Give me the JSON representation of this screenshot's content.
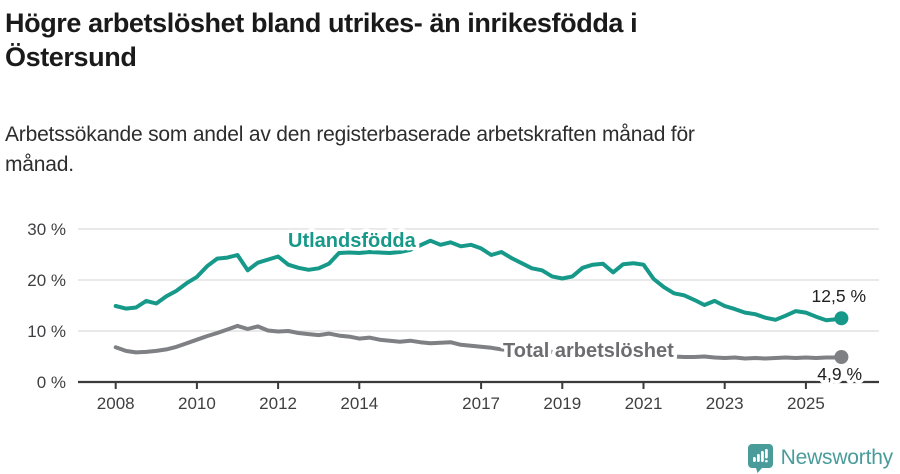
{
  "header": {
    "title": "Högre arbetslöshet bland utrikes- än inrikesfödda i Östersund",
    "title_lines": [
      "Högre arbetslöshet bland utrikes- än inrikesfödda i",
      "Östersund"
    ],
    "subtitle": "Arbetssökande som andel av den registerbaserade arbetskraften månad för månad.",
    "subtitle_lines": [
      "Arbetssökande som andel av den registerbaserade arbetskraften månad för",
      "månad."
    ]
  },
  "footer": {
    "logo_text": "Newsworthy",
    "logo_icon": "newsworthy-speech-bubble-chart-icon",
    "logo_color": "#4a9c9b"
  },
  "chart_data": {
    "type": "line",
    "title": "Högre arbetslöshet bland utrikes- än inrikesfödda i Östersund",
    "subtitle": "Arbetssökande som andel av den registerbaserade arbetskraften månad för månad.",
    "xlabel": "",
    "ylabel": "",
    "unit": "%",
    "grid": true,
    "legend_position": "inline",
    "ylim": [
      0,
      30
    ],
    "xlim": [
      2008,
      2026
    ],
    "x_ticks": [
      {
        "year": 2008,
        "label": "2008"
      },
      {
        "year": 2010,
        "label": "2010"
      },
      {
        "year": 2012,
        "label": "2012"
      },
      {
        "year": 2014,
        "label": "2014"
      },
      {
        "year": 2017,
        "label": "2017"
      },
      {
        "year": 2019,
        "label": "2019"
      },
      {
        "year": 2021,
        "label": "2021"
      },
      {
        "year": 2023,
        "label": "2023"
      },
      {
        "year": 2025,
        "label": "2025"
      }
    ],
    "y_ticks": [
      {
        "value": 0,
        "label": "0 %"
      },
      {
        "value": 10,
        "label": "10 %"
      },
      {
        "value": 20,
        "label": "20 %"
      },
      {
        "value": 30,
        "label": "30 %"
      }
    ],
    "x": [
      2008,
      2008.25,
      2008.5,
      2008.75,
      2009,
      2009.25,
      2009.5,
      2009.75,
      2010,
      2010.25,
      2010.5,
      2010.75,
      2011,
      2011.25,
      2011.5,
      2011.75,
      2012,
      2012.25,
      2012.5,
      2012.75,
      2013,
      2013.25,
      2013.5,
      2013.75,
      2014,
      2014.25,
      2014.5,
      2014.75,
      2015,
      2015.25,
      2015.5,
      2015.75,
      2016,
      2016.25,
      2016.5,
      2016.75,
      2017,
      2017.25,
      2017.5,
      2017.75,
      2018,
      2018.25,
      2018.5,
      2018.75,
      2019,
      2019.25,
      2019.5,
      2019.75,
      2020,
      2020.25,
      2020.5,
      2020.75,
      2021,
      2021.25,
      2021.5,
      2021.75,
      2022,
      2022.25,
      2022.5,
      2022.75,
      2023,
      2023.25,
      2023.5,
      2023.75,
      2024,
      2024.25,
      2024.5,
      2024.75,
      2025,
      2025.25,
      2025.5,
      2025.75,
      2025.875
    ],
    "series": [
      {
        "name": "Utlandsfödda",
        "color": "#17998a",
        "end_label": "12,5 %",
        "end_value": 12.5,
        "values": [
          14.9,
          14.4,
          14.6,
          15.9,
          15.4,
          16.8,
          17.9,
          19.4,
          20.6,
          22.7,
          24.2,
          24.4,
          24.9,
          21.9,
          23.4,
          24.0,
          24.6,
          23.0,
          22.4,
          22.0,
          22.3,
          23.2,
          25.3,
          25.4,
          25.3,
          25.5,
          25.4,
          25.3,
          25.5,
          25.9,
          26.8,
          27.7,
          26.9,
          27.4,
          26.6,
          26.9,
          26.2,
          24.9,
          25.5,
          24.3,
          23.3,
          22.3,
          21.9,
          20.7,
          20.3,
          20.7,
          22.4,
          23.0,
          23.2,
          21.5,
          23.1,
          23.3,
          23.0,
          20.2,
          18.6,
          17.4,
          17.0,
          16.1,
          15.1,
          15.9,
          14.9,
          14.3,
          13.6,
          13.3,
          12.6,
          12.2,
          13.0,
          13.9,
          13.6,
          12.8,
          12.1,
          12.3,
          12.5
        ]
      },
      {
        "name": "Total arbetslöshet",
        "color": "#7f8084",
        "end_label": "4,9 %",
        "end_value": 4.9,
        "values": [
          6.8,
          6.1,
          5.8,
          5.9,
          6.1,
          6.4,
          6.9,
          7.6,
          8.3,
          9.0,
          9.6,
          10.3,
          11.0,
          10.4,
          10.9,
          10.1,
          9.9,
          10.0,
          9.6,
          9.4,
          9.2,
          9.5,
          9.1,
          8.9,
          8.5,
          8.7,
          8.3,
          8.1,
          7.9,
          8.1,
          7.8,
          7.6,
          7.7,
          7.8,
          7.3,
          7.1,
          6.9,
          6.7,
          6.4,
          6.2,
          6.1,
          6.2,
          6.0,
          5.9,
          5.8,
          5.7,
          5.6,
          5.6,
          5.8,
          6.2,
          6.1,
          5.9,
          5.7,
          5.4,
          5.1,
          5.0,
          4.9,
          4.9,
          5.0,
          4.8,
          4.7,
          4.8,
          4.6,
          4.7,
          4.6,
          4.7,
          4.8,
          4.7,
          4.8,
          4.7,
          4.8,
          4.8,
          4.9
        ]
      }
    ]
  }
}
